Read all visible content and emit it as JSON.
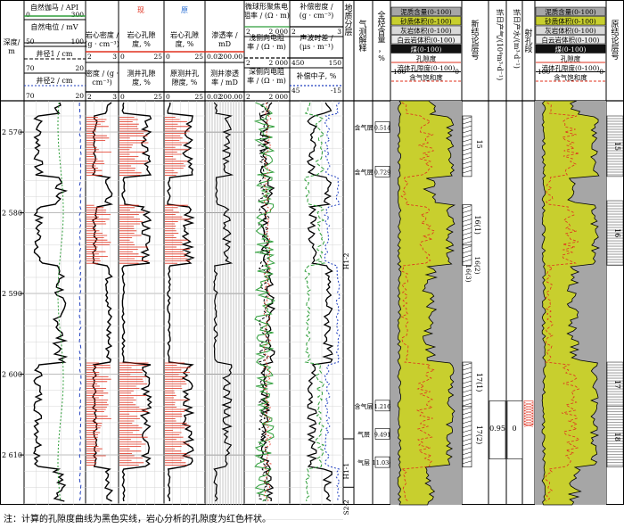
{
  "header": {
    "depth": {
      "label_1": "深度/",
      "label_2": "m"
    },
    "track1": [
      {
        "label": "自然伽马 / API",
        "min": "0",
        "max": "300"
      },
      {
        "label": "自然电位 / mV",
        "min": "50",
        "max": "100"
      },
      {
        "label": "井径1 / cm",
        "min": "70",
        "max": "20"
      },
      {
        "label": "井径2 / cm",
        "min": "70",
        "max": "20"
      }
    ],
    "track2": {
      "label_1": "岩心密度 /",
      "label_2": "(g · cm⁻³)",
      "min": "2",
      "max": "3",
      "label_3": "密度 / (g ·",
      "label_4": "cm⁻³)",
      "min2": "2",
      "max2": "3"
    },
    "track3": {
      "label_1": "岩心孔隙",
      "label_2": "度, %",
      "min": "0",
      "max": "25",
      "label_3": "测井孔隙",
      "label_4": "度, %",
      "min2": "0",
      "max2": "25",
      "corner": "现"
    },
    "track4": {
      "label_1": "岩心孔隙",
      "label_2": "度, %",
      "min": "0",
      "max": "25",
      "label_3": "原测井孔",
      "label_4": "隙度, %",
      "min2": "0",
      "max2": "25",
      "corner": "原"
    },
    "track5": {
      "label_1": "渗透率 /",
      "label_2": "mD",
      "min": "0.02",
      "max": "200.00",
      "label_3": "测井渗透",
      "label_4": "率 / mD",
      "min2": "0.02",
      "max2": "200.00"
    },
    "track6": {
      "label_1": "微球形聚焦电",
      "label_2": "阻率 / (Ω · m)",
      "min": "2",
      "max": "2 000",
      "label_3": "浅侧向电阻",
      "label_4": "率 / (Ω · m)",
      "min2": "2",
      "max2": "2 000",
      "label_5": "深侧向电阻",
      "label_6": "率 / (Ω · m)",
      "min3": "2",
      "max3": "2 000"
    },
    "track7": {
      "label_1": "补偿密度 /",
      "label_2": "(g · cm⁻³)",
      "min": "2",
      "max": "3",
      "label_3": "声波时差 /",
      "label_4": "(μs · m⁻¹)",
      "min2": "450",
      "max2": "150",
      "label_5": "补偿中子, %",
      "min3": "45",
      "max3": "-15"
    },
    "layer": "地质分层",
    "gas_test": "气测解释",
    "gas_content": "全烃含量，%",
    "lithology_legend": [
      "泥质含量(0-100)",
      "砂质体积(0-100)",
      "灰岩体积(0-100)",
      "白云岩体积(0-100)",
      "煤(0-100)",
      "孔隙度",
      "流体孔隙度(0-100)",
      "含气饱和度"
    ],
    "lithology_legend_ranges": [
      "100",
      "0"
    ],
    "new_conclusion": "新结论层号",
    "daily_gas": "折日产气/(10⁴m³·d⁻¹)",
    "daily_water": "折日产水/(m³·d⁻¹)",
    "perforation": "射孔段",
    "old_conclusion": "原结论层号"
  },
  "depth_ticks": [
    "2 570",
    "2 580",
    "2 590",
    "2 600",
    "2 610"
  ],
  "layers": [
    "H1-2",
    "H1-1",
    "S2-2"
  ],
  "gas_labels": [
    {
      "type": "含气层",
      "value": "0.514"
    },
    {
      "type": "含气层",
      "value": "0.729"
    },
    {
      "type": "含气层",
      "value": "1.216"
    },
    {
      "type": "气层",
      "value": "9.491"
    },
    {
      "type": "气层",
      "value": "11.034"
    }
  ],
  "new_layers": [
    "15",
    "16(1)",
    "16(3)",
    "16(2)",
    "17(1)",
    "17(2)"
  ],
  "production": {
    "gas": "0.95",
    "water": "0"
  },
  "old_layers": [
    "15",
    "16",
    "17",
    "18"
  ],
  "note": "注：计算的孔隙度曲线为黑色实线，岩心分析的孔隙度为红色杆状。",
  "colors": {
    "sand": "#c8cf2e",
    "shale": "#a6a6a6",
    "core": "#e0301e",
    "neutron": "#1f3fbf",
    "green": "#2f9e3a"
  }
}
